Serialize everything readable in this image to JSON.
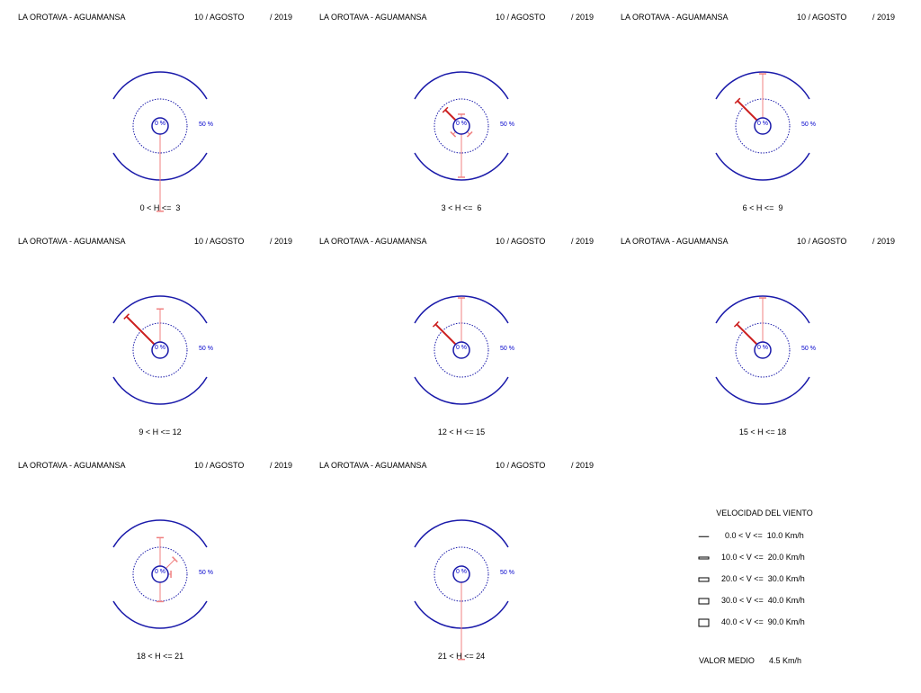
{
  "chart_data": {
    "type": "wind-rose",
    "station": "LA OROTAVA - AGUAMANSA",
    "date": "10 / AGOSTO",
    "year": "/ 2019",
    "center_label": "0 %",
    "ring_label": "50 %",
    "colors": {
      "rings": "#1a1aaa",
      "petals": "#e03030",
      "labels": "#0000cc"
    },
    "panels": [
      {
        "hours": "0 < H <=  3",
        "petals": [
          {
            "dir": "S",
            "pct": 84,
            "speed_class": 0
          }
        ]
      },
      {
        "hours": "3 < H <=  6",
        "petals": [
          {
            "dir": "N",
            "pct": 4,
            "speed_class": 0
          },
          {
            "dir": "S",
            "pct": 47,
            "speed_class": 0
          },
          {
            "dir": "NW",
            "pct": 16,
            "speed_class": 1
          },
          {
            "dir": "SW",
            "pct": 4,
            "speed_class": 0
          },
          {
            "dir": "SE",
            "pct": 4,
            "speed_class": 0
          }
        ]
      },
      {
        "hours": "6 < H <=  9",
        "petals": [
          {
            "dir": "N",
            "pct": 48,
            "speed_class": 0
          },
          {
            "dir": "NW",
            "pct": 30,
            "speed_class": 1
          }
        ]
      },
      {
        "hours": "9 < H <= 12",
        "petals": [
          {
            "dir": "N",
            "pct": 36,
            "speed_class": 0
          },
          {
            "dir": "NW",
            "pct": 43,
            "speed_class": 1
          }
        ]
      },
      {
        "hours": "12 < H <= 15",
        "petals": [
          {
            "dir": "N",
            "pct": 48,
            "speed_class": 0
          },
          {
            "dir": "NW",
            "pct": 31,
            "speed_class": 1
          }
        ]
      },
      {
        "hours": "15 < H <= 18",
        "petals": [
          {
            "dir": "N",
            "pct": 48,
            "speed_class": 0
          },
          {
            "dir": "NW",
            "pct": 31,
            "speed_class": 1
          }
        ]
      },
      {
        "hours": "18 < H <= 21",
        "petals": [
          {
            "dir": "N",
            "pct": 31,
            "speed_class": 0
          },
          {
            "dir": "S",
            "pct": 21,
            "speed_class": 0
          },
          {
            "dir": "NE",
            "pct": 14,
            "speed_class": 0
          },
          {
            "dir": "E",
            "pct": 3,
            "speed_class": 0
          }
        ]
      },
      {
        "hours": "21 < H <= 24",
        "petals": [
          {
            "dir": "S",
            "pct": 84,
            "speed_class": 0
          }
        ]
      }
    ],
    "legend": {
      "title": "VELOCIDAD DEL VIENTO",
      "items": [
        "0.0 < V <=  10.0 Km/h",
        "10.0 < V <=  20.0 Km/h",
        "20.0 < V <=  30.0 Km/h",
        "30.0 < V <=  40.0 Km/h",
        "40.0 < V <=  90.0 Km/h"
      ],
      "mean_label": "VALOR MEDIO",
      "mean_value": "4.5 Km/h"
    }
  }
}
